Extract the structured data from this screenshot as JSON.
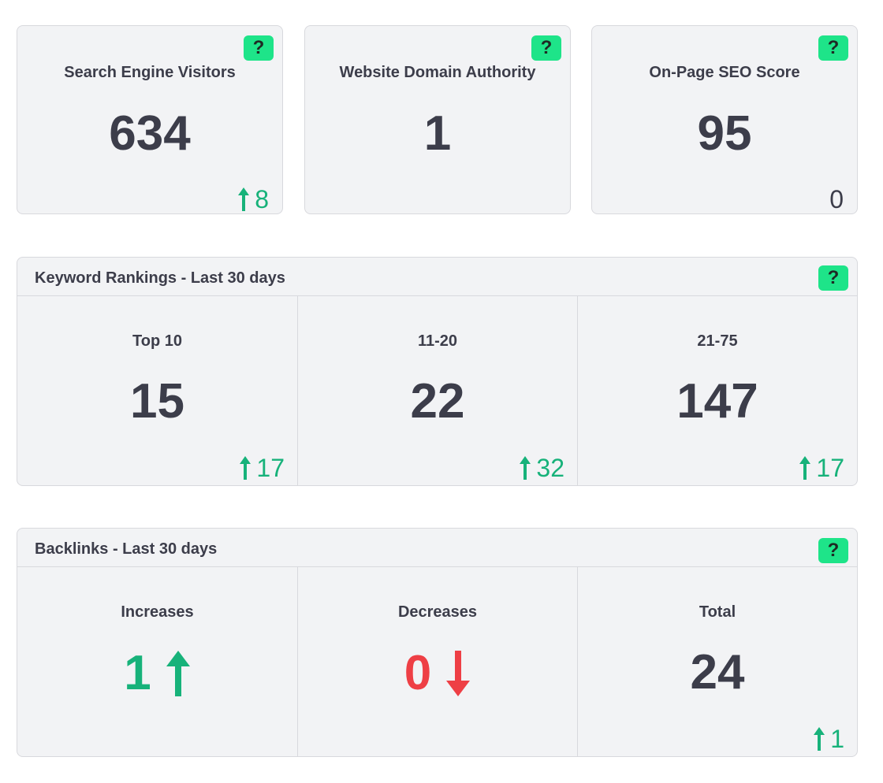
{
  "top_cards": [
    {
      "title": "Search Engine Visitors",
      "value": "634",
      "delta": "8",
      "trend": "up"
    },
    {
      "title": "Website Domain Authority",
      "value": "1"
    },
    {
      "title": "On-Page SEO Score",
      "value": "95",
      "delta": "0",
      "trend": "neutral"
    }
  ],
  "help_label": "?",
  "keywords": {
    "title": "Keyword Rankings - Last 30 days",
    "cells": [
      {
        "label": "Top 10",
        "value": "15",
        "delta": "17",
        "trend": "up"
      },
      {
        "label": "11-20",
        "value": "22",
        "delta": "32",
        "trend": "up"
      },
      {
        "label": "21-75",
        "value": "147",
        "delta": "17",
        "trend": "up"
      }
    ]
  },
  "backlinks": {
    "title": "Backlinks - Last 30 days",
    "increases": {
      "label": "Increases",
      "value": "1"
    },
    "decreases": {
      "label": "Decreases",
      "value": "0"
    },
    "total": {
      "label": "Total",
      "value": "24",
      "delta": "1",
      "trend": "up"
    }
  },
  "colors": {
    "up": "#17b27a",
    "down": "#ee3f45",
    "help_button": "#1ee489",
    "text": "#3c3d4a"
  }
}
